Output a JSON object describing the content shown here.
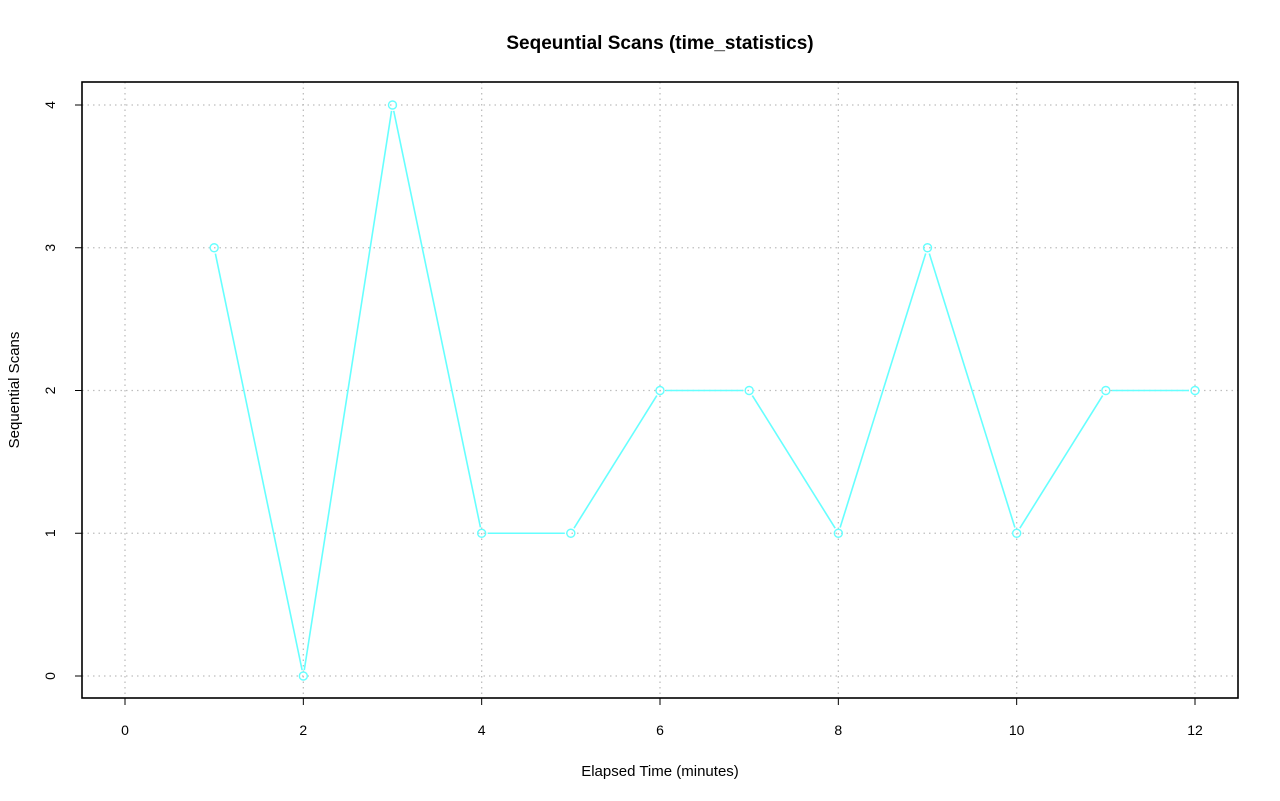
{
  "chart_data": {
    "type": "line",
    "title": "Seqeuntial Scans (time_statistics)",
    "xlabel": "Elapsed Time (minutes)",
    "ylabel": "Sequential Scans",
    "xlim": [
      0,
      12
    ],
    "ylim": [
      0,
      4
    ],
    "x_ticks": [
      0,
      2,
      4,
      6,
      8,
      10,
      12
    ],
    "y_ticks": [
      0,
      1,
      2,
      3,
      4
    ],
    "grid": true,
    "legend": "none",
    "series": [
      {
        "x": [
          1,
          2,
          3,
          4,
          5,
          6,
          7,
          8,
          9,
          10,
          11,
          12
        ],
        "y": [
          3,
          0,
          4,
          1,
          1,
          2,
          2,
          1,
          3,
          1,
          2,
          2
        ],
        "color": "#66ffff",
        "marker": "open-circle"
      }
    ],
    "grid_color": "#bebebe"
  }
}
